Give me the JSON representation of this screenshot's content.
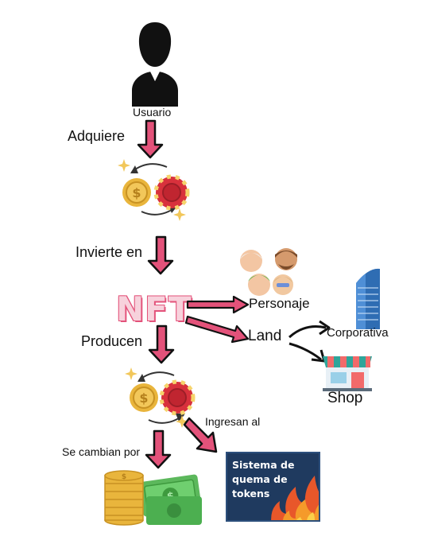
{
  "labels": {
    "user": "Usuario",
    "acquire": "Adquiere",
    "invest": "Invierte en",
    "nft": "NFT",
    "character": "Personaje",
    "land": "Land",
    "corporate": "Corporativa",
    "produce": "Producen",
    "shop": "Shop",
    "enter": "Ingresan al",
    "exchange": "Se cambian por",
    "burn": "Sistema de quema de tokens"
  },
  "colors": {
    "arrow_pink": "#e3527a",
    "arrow_outline": "#111111",
    "burn_bg": "#1f3a5f",
    "gold": "#e9b53c",
    "red_token": "#d8313c",
    "nft_fill": "#f7d2dc"
  },
  "icons": [
    "user-icon",
    "token-swap-icon",
    "characters-icon",
    "building-icon",
    "shop-icon",
    "money-icon",
    "fire-icon"
  ]
}
